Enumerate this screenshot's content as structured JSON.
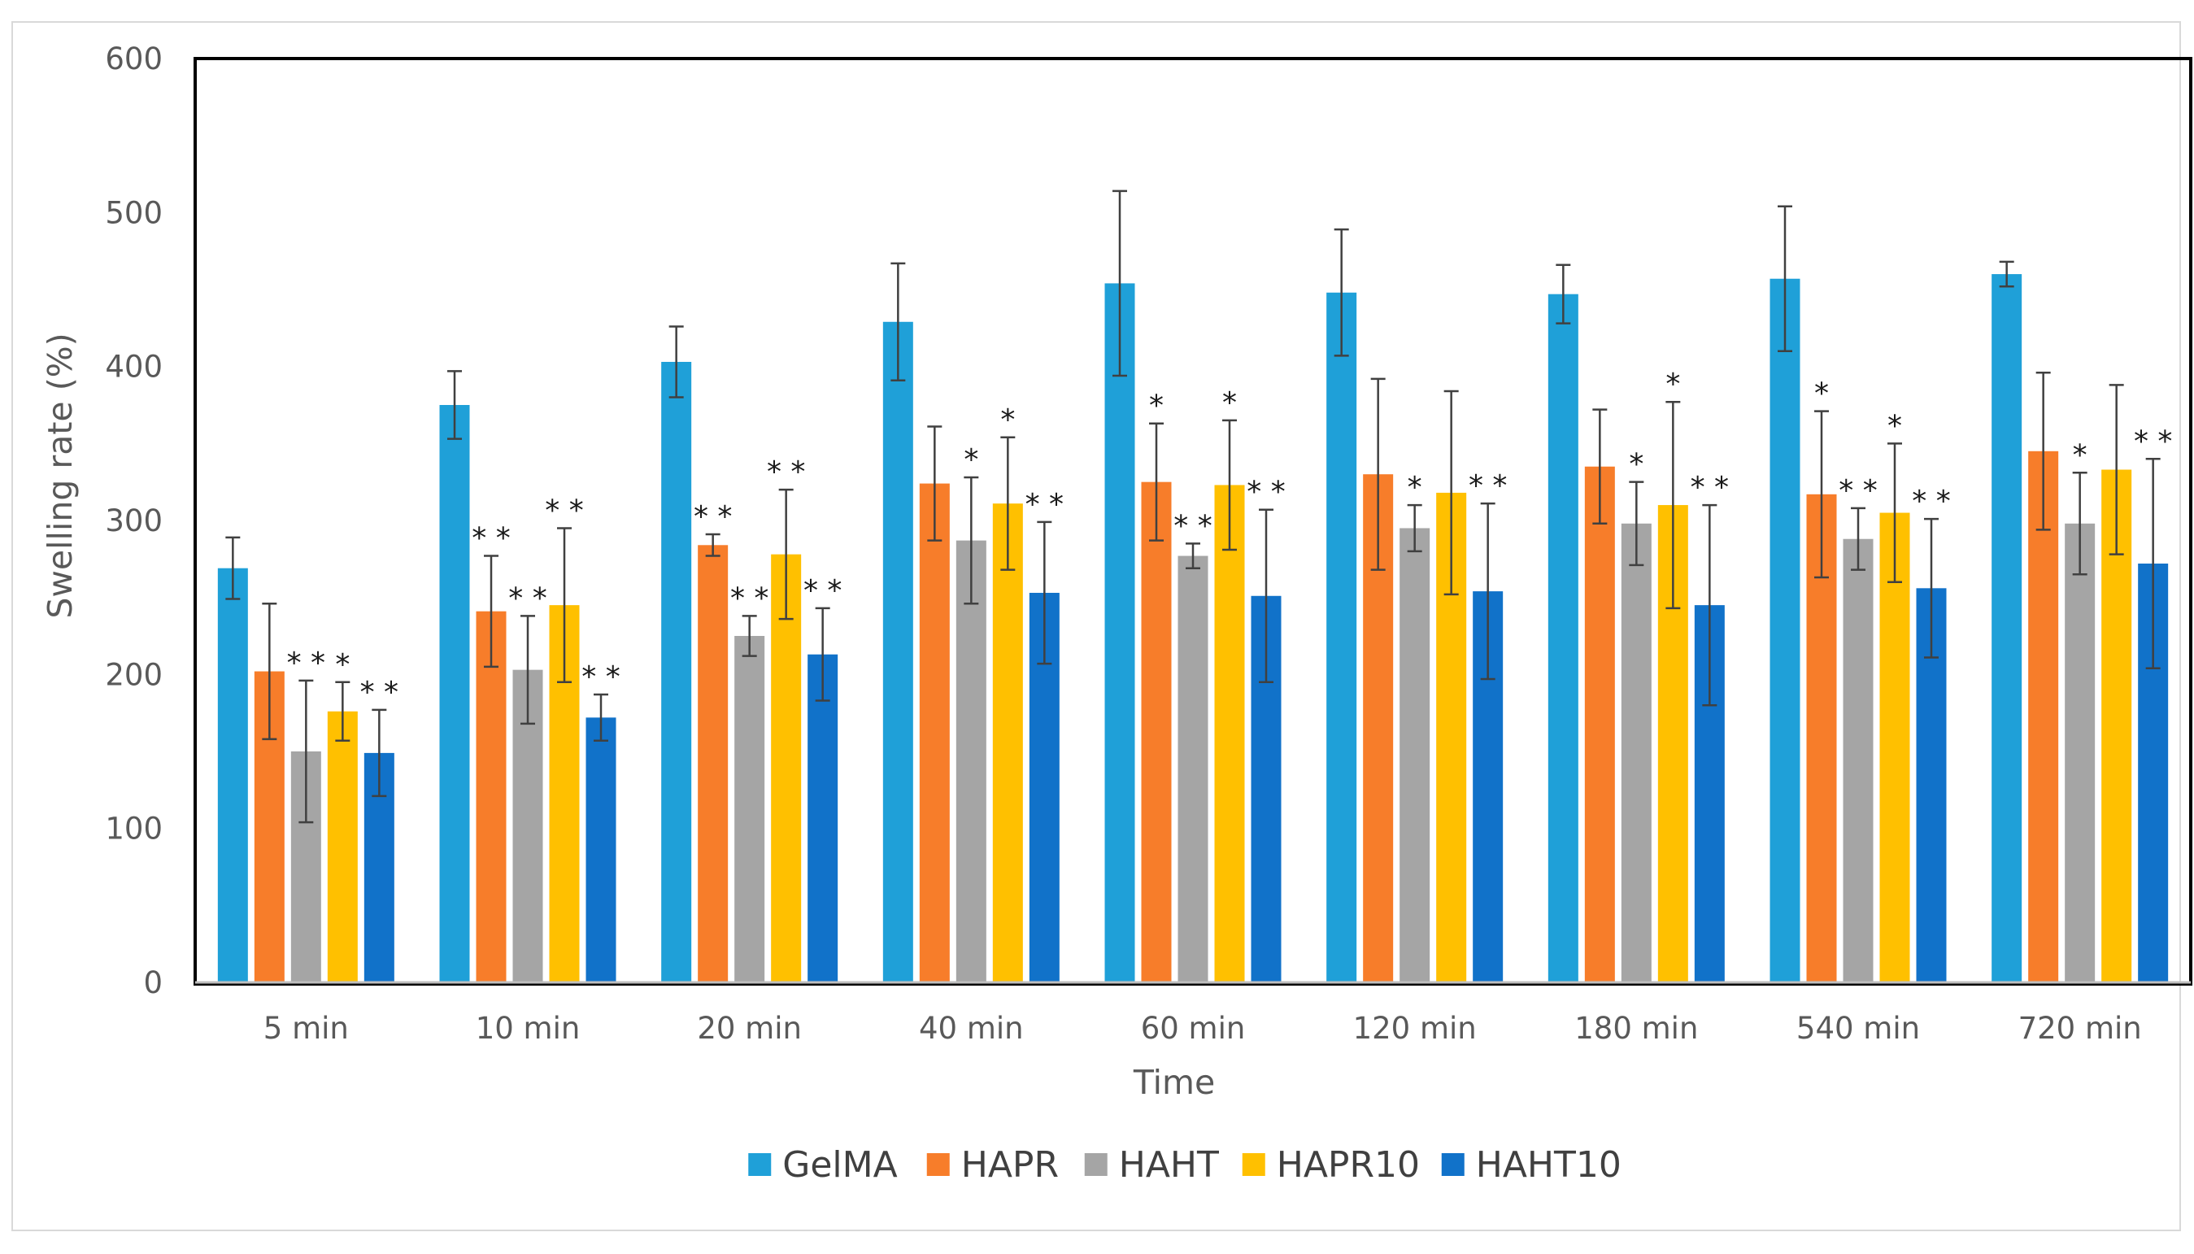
{
  "chart_data": {
    "type": "bar",
    "title": "",
    "xlabel": "Time",
    "ylabel": "Swelling rate (%)",
    "ylim": [
      0,
      600
    ],
    "yticks": [
      0,
      100,
      200,
      300,
      400,
      500,
      600
    ],
    "grid": false,
    "legend_position": "bottom",
    "categories": [
      "5 min",
      "10 min",
      "20 min",
      "40 min",
      "60 min",
      "120 min",
      "180 min",
      "540 min",
      "720 min"
    ],
    "series": [
      {
        "name": "GelMA",
        "color": "#1fa0d8",
        "values": [
          269,
          375,
          403,
          429,
          454,
          448,
          447,
          457,
          460
        ],
        "errors": [
          20,
          22,
          23,
          38,
          60,
          41,
          19,
          47,
          8
        ],
        "annotations": [
          "",
          "",
          "",
          "",
          "",
          "",
          "",
          "",
          ""
        ]
      },
      {
        "name": "HAPR",
        "color": "#f77d2a",
        "values": [
          202,
          241,
          284,
          324,
          325,
          330,
          335,
          317,
          345
        ],
        "errors": [
          44,
          36,
          7,
          37,
          38,
          62,
          37,
          54,
          51
        ],
        "annotations": [
          "",
          "**",
          "**",
          "",
          "*",
          "",
          "",
          "*",
          ""
        ]
      },
      {
        "name": "HAHT",
        "color": "#a5a5a5",
        "values": [
          150,
          203,
          225,
          287,
          277,
          295,
          298,
          288,
          298
        ],
        "errors": [
          46,
          35,
          13,
          41,
          8,
          15,
          27,
          20,
          33
        ],
        "annotations": [
          "**",
          "**",
          "**",
          "*",
          "**",
          "*",
          "*",
          "**",
          "*"
        ]
      },
      {
        "name": "HAPR10",
        "color": "#ffc000",
        "values": [
          176,
          245,
          278,
          311,
          323,
          318,
          310,
          305,
          333
        ],
        "errors": [
          19,
          50,
          42,
          43,
          42,
          66,
          67,
          45,
          55
        ],
        "annotations": [
          "*",
          "**",
          "**",
          "*",
          "*",
          "",
          "*",
          "*",
          ""
        ]
      },
      {
        "name": "HAHT10",
        "color": "#1172c9",
        "values": [
          149,
          172,
          213,
          253,
          251,
          254,
          245,
          256,
          272
        ],
        "errors": [
          28,
          15,
          30,
          46,
          56,
          57,
          65,
          45,
          68
        ],
        "annotations": [
          "**",
          "**",
          "**",
          "**",
          "**",
          "**",
          "**",
          "**",
          "**"
        ]
      }
    ]
  }
}
